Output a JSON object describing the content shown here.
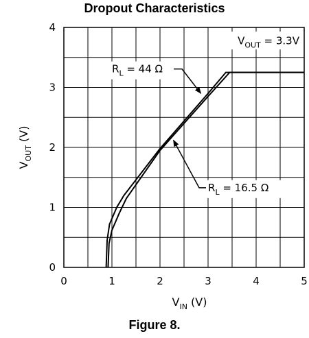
{
  "figure": {
    "caption": "Figure 8."
  },
  "chart_data": {
    "type": "line",
    "title": "Dropout Characteristics",
    "xlabel": {
      "main": "V",
      "sub": "IN",
      "unit": "(V)"
    },
    "ylabel": {
      "main": "V",
      "sub": "OUT",
      "unit": "(V)"
    },
    "xlim": [
      0,
      5
    ],
    "ylim": [
      0,
      4
    ],
    "x_ticks": [
      "0",
      "1",
      "2",
      "3",
      "4",
      "5"
    ],
    "y_ticks": [
      "0",
      "1",
      "2",
      "3",
      "4"
    ],
    "grid": true,
    "condition": {
      "main": "V",
      "sub": "OUT",
      "rest": " = 3.3V"
    },
    "series": [
      {
        "name": "R_L = 44 Ω",
        "label_main": "R",
        "label_sub": "L",
        "label_rest": " = 44 Ω",
        "points": [
          [
            0.88,
            0
          ],
          [
            0.9,
            0.45
          ],
          [
            0.95,
            0.72
          ],
          [
            1.1,
            1.0
          ],
          [
            1.25,
            1.2
          ],
          [
            2.0,
            1.98
          ],
          [
            3.0,
            2.9
          ],
          [
            3.37,
            3.25
          ],
          [
            5.0,
            3.25
          ]
        ]
      },
      {
        "name": "R_L = 16.5 Ω",
        "label_main": "R",
        "label_sub": "L",
        "label_rest": " = 16.5 Ω",
        "points": [
          [
            0.92,
            0
          ],
          [
            0.94,
            0.4
          ],
          [
            1.0,
            0.62
          ],
          [
            1.15,
            0.9
          ],
          [
            1.3,
            1.15
          ],
          [
            2.0,
            1.95
          ],
          [
            3.0,
            2.85
          ],
          [
            3.45,
            3.25
          ],
          [
            5.0,
            3.25
          ]
        ]
      }
    ],
    "annotations": [
      {
        "series": 0,
        "text_x": 1.0,
        "text_y": 3.25,
        "arrow_to": [
          2.85,
          2.9
        ]
      },
      {
        "series": 1,
        "text_x": 3.0,
        "text_y": 1.27,
        "arrow_to": [
          2.28,
          2.12
        ]
      }
    ]
  }
}
